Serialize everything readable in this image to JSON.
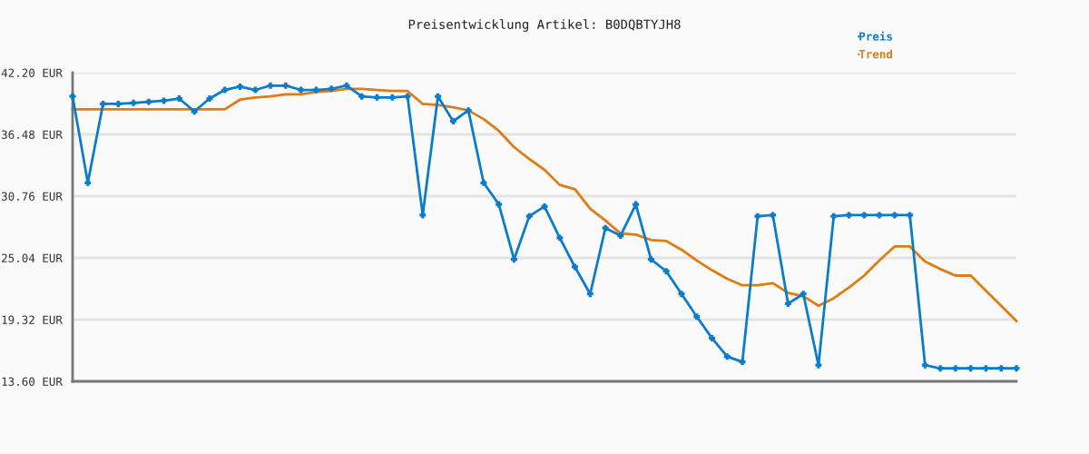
{
  "chart_data": {
    "type": "line",
    "title": "Preisentwicklung Artikel: B0DQBTYJH8",
    "categories": [
      null,
      null,
      null,
      null,
      null,
      null,
      null,
      null,
      null,
      null,
      null,
      null,
      null,
      null,
      null,
      null,
      null,
      null,
      null,
      null,
      null,
      null,
      null,
      null,
      null,
      null,
      null,
      null,
      null,
      null,
      null,
      null,
      null,
      null,
      null,
      null,
      null,
      null,
      null,
      null,
      null,
      null,
      null,
      null,
      null,
      null,
      null,
      null,
      null,
      null,
      null,
      null,
      null,
      null,
      null,
      null,
      null,
      null,
      null,
      null,
      null,
      null,
      null
    ],
    "series": [
      {
        "name": "Preis",
        "color": "#0a7ccc",
        "marker": "cross",
        "values": [
          40.0,
          32.0,
          39.3,
          39.3,
          39.4,
          39.5,
          39.6,
          39.8,
          38.6,
          39.8,
          40.6,
          40.9,
          40.6,
          41.0,
          41.0,
          40.6,
          40.6,
          40.7,
          41.0,
          40.0,
          39.9,
          39.9,
          40.0,
          29.0,
          40.0,
          37.7,
          38.7,
          32.0,
          30.0,
          24.9,
          28.9,
          29.8,
          26.9,
          24.2,
          21.7,
          27.8,
          27.1,
          30.0,
          24.9,
          23.8,
          21.7,
          19.6,
          17.6,
          15.9,
          15.4,
          28.9,
          29.0,
          20.8,
          21.7,
          15.1,
          28.9,
          29.0,
          29.0,
          29.0,
          29.0,
          29.0,
          15.1,
          14.8,
          14.8,
          14.8,
          14.8,
          14.8,
          14.8
        ]
      },
      {
        "name": "Trend",
        "color": "#e07c10",
        "marker": "none",
        "values": [
          38.8,
          38.8,
          38.8,
          38.8,
          38.8,
          38.8,
          38.8,
          38.8,
          38.8,
          38.8,
          38.8,
          39.7,
          39.9,
          40.0,
          40.2,
          40.2,
          40.4,
          40.5,
          40.7,
          40.7,
          40.6,
          40.5,
          40.5,
          39.3,
          39.2,
          39.0,
          38.7,
          37.9,
          36.8,
          35.3,
          34.2,
          33.2,
          31.8,
          31.4,
          29.6,
          28.5,
          27.3,
          27.2,
          26.7,
          26.6,
          25.8,
          24.8,
          23.9,
          23.1,
          22.5,
          22.5,
          22.7,
          21.8,
          21.5,
          20.6,
          21.3,
          22.3,
          23.4,
          24.8,
          26.1,
          26.1,
          24.7,
          24.0,
          23.4,
          23.4,
          22.0,
          20.6,
          19.2
        ]
      }
    ],
    "ylim": [
      13.6,
      42.2
    ],
    "yticks": [
      {
        "value": 13.6,
        "label": "13.60 EUR"
      },
      {
        "value": 19.32,
        "label": "19.32 EUR"
      },
      {
        "value": 25.04,
        "label": "25.04 EUR"
      },
      {
        "value": 30.76,
        "label": "30.76 EUR"
      },
      {
        "value": 36.48,
        "label": "36.48 EUR"
      },
      {
        "value": 42.2,
        "label": "42.20 EUR"
      }
    ],
    "grid": "y",
    "legend": "top right",
    "line_style": "solid"
  }
}
